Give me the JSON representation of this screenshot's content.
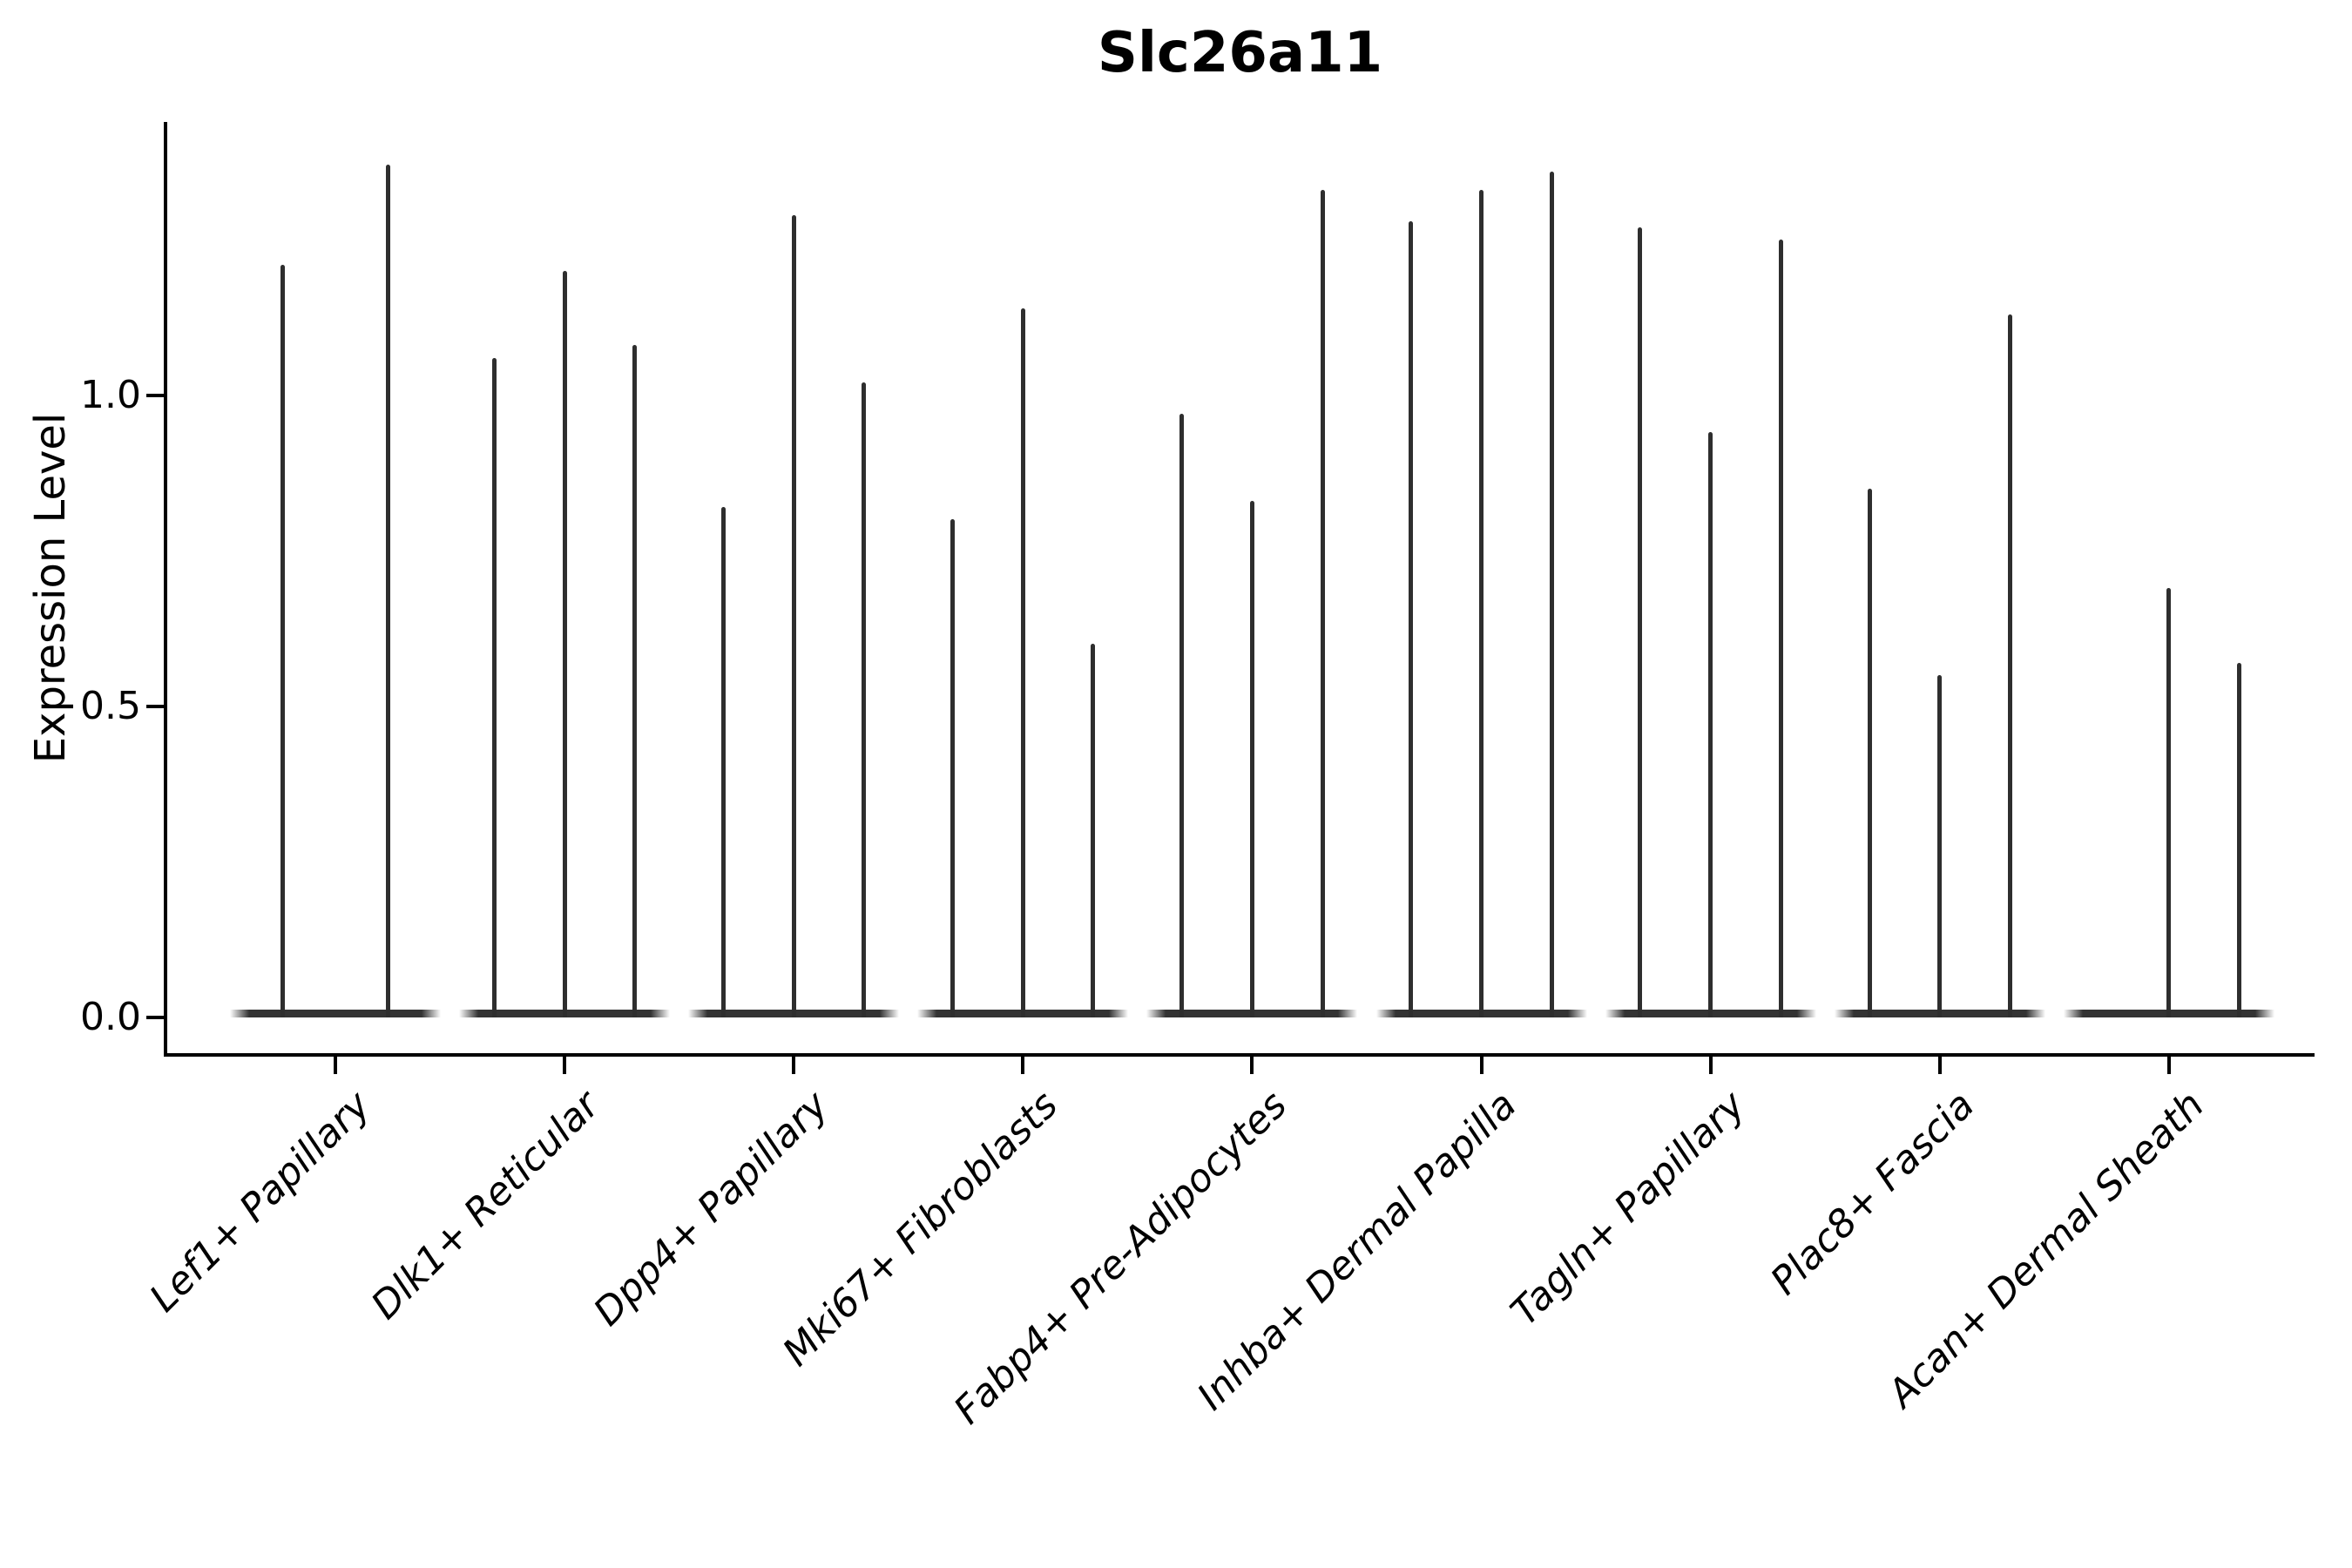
{
  "title": "Slc26a11",
  "chart_data": {
    "type": "violin",
    "title": "Slc26a11",
    "xlabel": "",
    "ylabel": "Expression Level",
    "legend_position": "none",
    "grid": false,
    "background_color": "#ffffff",
    "violin_line_color": "#2e2e2e",
    "axis_color": "#000000",
    "ylim": [
      -0.069,
      1.439
    ],
    "y_ticks": [
      0.0,
      0.5,
      1.0
    ],
    "y_tick_labels": [
      "0.0",
      "0.5",
      "1.0"
    ],
    "categories": [
      "Lef1+ Papillary",
      "Dlk1+ Reticular",
      "Dpp4+ Papillary",
      "Mki67+ Fibroblasts",
      "Fabp4+ Pre-Adipocytes",
      "Inhba+ Dermal Papilla",
      "Tagln+ Papillary",
      "Plac8+ Fascia",
      "Acan+ Dermal Sheath"
    ],
    "description": "Each category holds thin spike-shaped violins (dense mass at 0 with a narrow spike up to the max expression value).",
    "violins": [
      {
        "category": "Lef1+ Papillary",
        "spike_maxima": [
          1.21,
          1.37
        ]
      },
      {
        "category": "Dlk1+ Reticular",
        "spike_maxima": [
          1.06,
          1.2,
          1.08
        ]
      },
      {
        "category": "Dpp4+ Papillary",
        "spike_maxima": [
          0.82,
          1.29,
          1.02
        ]
      },
      {
        "category": "Mki67+ Fibroblasts",
        "spike_maxima": [
          0.8,
          1.14,
          0.6
        ]
      },
      {
        "category": "Fabp4+ Pre-Adipocytes",
        "spike_maxima": [
          0.97,
          0.83,
          1.33
        ]
      },
      {
        "category": "Inhba+ Dermal Papilla",
        "spike_maxima": [
          1.28,
          1.33,
          1.36
        ]
      },
      {
        "category": "Tagln+ Papillary",
        "spike_maxima": [
          1.27,
          0.94,
          1.25
        ]
      },
      {
        "category": "Plac8+ Fascia",
        "spike_maxima": [
          0.85,
          0.55,
          1.13
        ]
      },
      {
        "category": "Acan+ Dermal Sheath",
        "spike_maxima": [
          0.0,
          0.69,
          0.57
        ]
      }
    ]
  }
}
